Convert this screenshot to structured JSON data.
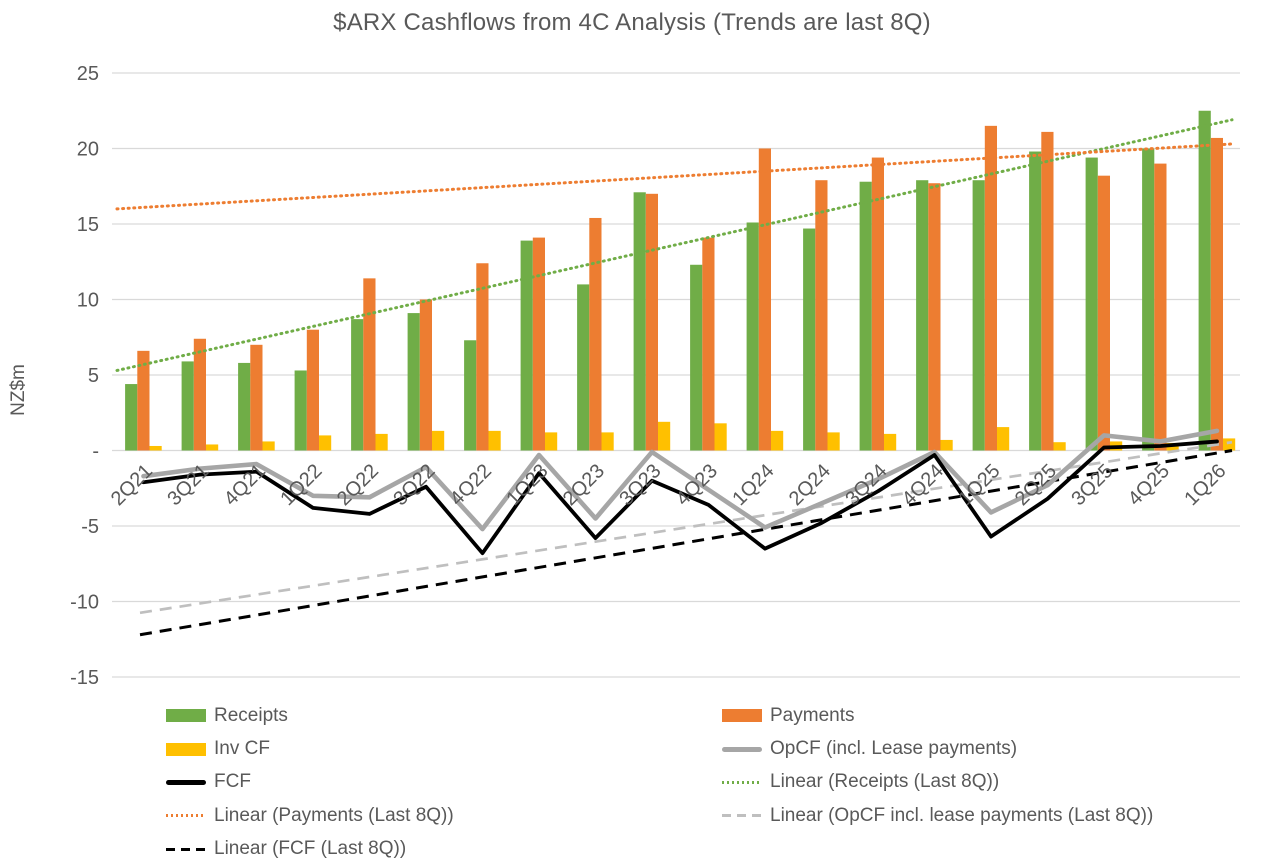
{
  "chart_data": {
    "type": "bar",
    "title": "$ARX Cashflows from 4C Analysis (Trends are last 8Q)",
    "ylabel": "NZ$m",
    "xlabel": "",
    "ylim": [
      -15,
      25
    ],
    "ytick_step": 5,
    "zero_tick_label": "-",
    "grid": true,
    "legend_position": "bottom",
    "categories": [
      "2Q21",
      "3Q21",
      "4Q21",
      "1Q22",
      "2Q22",
      "3Q22",
      "4Q22",
      "1Q23",
      "2Q23",
      "3Q23",
      "4Q23",
      "1Q24",
      "2Q24",
      "3Q24",
      "4Q24",
      "1Q25",
      "2Q25",
      "3Q25",
      "4Q25",
      "1Q26"
    ],
    "bar_series": [
      {
        "name": "Receipts",
        "color": "#70AD47",
        "values": [
          4.4,
          5.9,
          5.8,
          5.3,
          8.7,
          9.1,
          7.3,
          13.9,
          11.0,
          17.1,
          12.3,
          15.1,
          14.7,
          17.8,
          17.9,
          17.9,
          19.8,
          19.4,
          20.0,
          22.5
        ]
      },
      {
        "name": "Payments",
        "color": "#ED7D31",
        "values": [
          6.6,
          7.4,
          7.0,
          8.0,
          11.4,
          10.0,
          12.4,
          14.1,
          15.4,
          17.0,
          14.1,
          20.0,
          17.9,
          19.4,
          17.7,
          21.5,
          21.1,
          18.2,
          19.0,
          20.7
        ]
      },
      {
        "name": "Inv CF",
        "color": "#FFC000",
        "values": [
          0.3,
          0.4,
          0.6,
          1.0,
          1.1,
          1.3,
          1.3,
          1.2,
          1.2,
          1.9,
          1.8,
          1.3,
          1.2,
          1.1,
          0.7,
          1.55,
          0.55,
          0.6,
          0.5,
          0.8
        ]
      }
    ],
    "line_series": [
      {
        "name": "OpCF (incl. Lease payments)",
        "color": "#A6A6A6",
        "stroke_width": 4.6,
        "values": [
          -1.7,
          -1.2,
          -0.9,
          -3.0,
          -3.1,
          -1.1,
          -5.2,
          -0.3,
          -4.5,
          -0.1,
          -2.6,
          -5.1,
          -3.5,
          -1.9,
          -0.1,
          -4.1,
          -2.3,
          1.0,
          0.6,
          1.3
        ]
      },
      {
        "name": "FCF",
        "color": "#000000",
        "stroke_width": 3.8,
        "values": [
          -2.1,
          -1.6,
          -1.4,
          -3.8,
          -4.2,
          -2.4,
          -6.8,
          -1.5,
          -5.8,
          -2.0,
          -3.6,
          -6.5,
          -4.8,
          -2.7,
          -0.3,
          -5.7,
          -3.2,
          0.2,
          0.3,
          0.6
        ]
      }
    ],
    "trendlines": [
      {
        "name": "Linear (Receipts (Last 8Q))",
        "color": "#70AD47",
        "style": "dotted",
        "span": "full",
        "start_value": 5.3,
        "end_value": 21.9
      },
      {
        "name": "Linear (Payments (Last 8Q))",
        "color": "#ED7D31",
        "style": "dotted",
        "span": "full",
        "start_value": 16.0,
        "end_value": 20.3
      },
      {
        "name": "Linear (OpCF incl. lease payments (Last 8Q))",
        "color": "#BFBFBF",
        "style": "dashed",
        "span": "from_first_category",
        "start_value": -10.75,
        "end_value": 0.55
      },
      {
        "name": "Linear (FCF (Last 8Q))",
        "color": "#000000",
        "style": "dashed",
        "span": "from_first_category",
        "start_value": -12.2,
        "end_value": 0.0
      }
    ],
    "legend": {
      "items": [
        {
          "label": "Receipts",
          "swatch": "rect",
          "color": "#70AD47"
        },
        {
          "label": "Payments",
          "swatch": "rect",
          "color": "#ED7D31"
        },
        {
          "label": "Inv CF",
          "swatch": "rect",
          "color": "#FFC000"
        },
        {
          "label": "OpCF (incl. Lease payments)",
          "swatch": "line",
          "color": "#A6A6A6"
        },
        {
          "label": "FCF",
          "swatch": "line",
          "color": "#000000"
        },
        {
          "label": "Linear (Receipts (Last 8Q))",
          "swatch": "dotted",
          "color": "#70AD47"
        },
        {
          "label": "Linear (Payments (Last 8Q))",
          "swatch": "dotted",
          "color": "#ED7D31"
        },
        {
          "label": "Linear (OpCF incl. lease payments (Last 8Q))",
          "swatch": "dashed",
          "color": "#BFBFBF"
        },
        {
          "label": "Linear (FCF (Last 8Q))",
          "swatch": "dashed",
          "color": "#000000"
        }
      ]
    },
    "colors": {
      "text": "#595959",
      "gridline": "#D9D9D9"
    }
  }
}
